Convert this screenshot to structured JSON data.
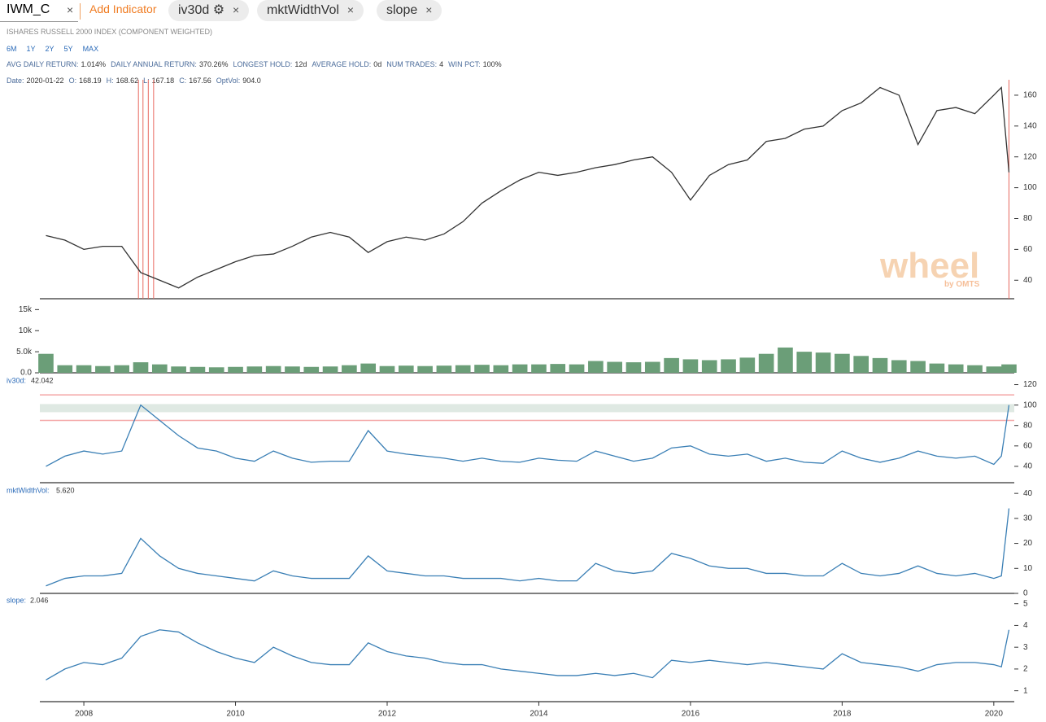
{
  "toolbar": {
    "symbol": "IWM_C",
    "close_icon": "×",
    "add_indicator": "Add Indicator",
    "tabs": [
      {
        "label": "iv30d",
        "icon": "⚙",
        "close": "×"
      },
      {
        "label": "mktWidthVol",
        "close": "×"
      },
      {
        "label": "slope",
        "close": "×"
      }
    ]
  },
  "subtitle": "ISHARES RUSSELL 2000 INDEX (COMPONENT WEIGHTED)",
  "ranges": [
    "6M",
    "1Y",
    "2Y",
    "5Y",
    "MAX"
  ],
  "stats": [
    {
      "label": "AVG DAILY RETURN:",
      "value": "1.014%"
    },
    {
      "label": "DAILY ANNUAL RETURN:",
      "value": "370.26%"
    },
    {
      "label": "LONGEST HOLD:",
      "value": "12d"
    },
    {
      "label": "AVERAGE HOLD:",
      "value": "0d"
    },
    {
      "label": "NUM TRADES:",
      "value": "4"
    },
    {
      "label": "WIN PCT:",
      "value": "100%"
    }
  ],
  "ohlc": [
    {
      "label": "Date:",
      "value": "2020-01-22"
    },
    {
      "label": "O:",
      "value": "168.19"
    },
    {
      "label": "H:",
      "value": "168.62"
    },
    {
      "label": "L:",
      "value": "167.18"
    },
    {
      "label": "C:",
      "value": "167.56"
    },
    {
      "label": "OptVol:",
      "value": "904.0"
    }
  ],
  "watermark": {
    "text": "wheel",
    "sub": "by OMTS"
  },
  "chart_data": [
    {
      "type": "line",
      "color": "#333333",
      "x": [
        2007.5,
        2007.75,
        2008,
        2008.25,
        2008.5,
        2008.75,
        2009,
        2009.25,
        2009.5,
        2009.75,
        2010,
        2010.25,
        2010.5,
        2010.75,
        2011,
        2011.25,
        2011.5,
        2011.75,
        2012,
        2012.25,
        2012.5,
        2012.75,
        2013,
        2013.25,
        2013.5,
        2013.75,
        2014,
        2014.25,
        2014.5,
        2014.75,
        2015,
        2015.25,
        2015.5,
        2015.75,
        2016,
        2016.25,
        2016.5,
        2016.75,
        2017,
        2017.25,
        2017.5,
        2017.75,
        2018,
        2018.25,
        2018.5,
        2018.75,
        2019,
        2019.25,
        2019.5,
        2019.75,
        2020,
        2020.1,
        2020.2
      ],
      "values": [
        69,
        66,
        60,
        62,
        62,
        45,
        40,
        35,
        42,
        47,
        52,
        56,
        57,
        62,
        68,
        71,
        68,
        58,
        65,
        68,
        66,
        70,
        78,
        90,
        98,
        105,
        110,
        108,
        110,
        113,
        115,
        118,
        120,
        110,
        92,
        108,
        115,
        118,
        130,
        132,
        138,
        140,
        150,
        155,
        165,
        160,
        128,
        150,
        152,
        148,
        160,
        165,
        110
      ],
      "trade_markers": {
        "x": [
          2008.72,
          2008.78,
          2008.85,
          2008.92,
          2020.2
        ],
        "color": "#e8685f"
      },
      "xlim": [
        2007.42,
        2020.27
      ],
      "ylim": [
        28,
        170
      ],
      "yticks": [
        40,
        60,
        80,
        100,
        120,
        140,
        160
      ]
    },
    {
      "type": "bar",
      "color": "#6b9e78",
      "x": [
        2007.5,
        2007.75,
        2008,
        2008.25,
        2008.5,
        2008.75,
        2009,
        2009.25,
        2009.5,
        2009.75,
        2010,
        2010.25,
        2010.5,
        2010.75,
        2011,
        2011.25,
        2011.5,
        2011.75,
        2012,
        2012.25,
        2012.5,
        2012.75,
        2013,
        2013.25,
        2013.5,
        2013.75,
        2014,
        2014.25,
        2014.5,
        2014.75,
        2015,
        2015.25,
        2015.5,
        2015.75,
        2016,
        2016.25,
        2016.5,
        2016.75,
        2017,
        2017.25,
        2017.5,
        2017.75,
        2018,
        2018.25,
        2018.5,
        2018.75,
        2019,
        2019.25,
        2019.5,
        2019.75,
        2020,
        2020.1,
        2020.2
      ],
      "values": [
        4500,
        1800,
        1800,
        1600,
        1800,
        2500,
        2000,
        1500,
        1400,
        1300,
        1400,
        1500,
        1600,
        1500,
        1400,
        1500,
        1800,
        2200,
        1600,
        1700,
        1600,
        1700,
        1800,
        1900,
        1800,
        2000,
        2000,
        2100,
        2000,
        2800,
        2600,
        2500,
        2600,
        3500,
        3200,
        3000,
        3200,
        3600,
        4500,
        6000,
        5000,
        4800,
        4500,
        4000,
        3500,
        3000,
        2800,
        2200,
        2000,
        1800,
        1500,
        1400,
        2000
      ],
      "xlim": [
        2007.42,
        2020.27
      ],
      "ylim": [
        0,
        17000
      ],
      "yticks": [
        {
          "value": 0,
          "label": "0.0"
        },
        {
          "value": 5000,
          "label": "5.0k"
        },
        {
          "value": 10000,
          "label": "10k"
        },
        {
          "value": 15000,
          "label": "15k"
        }
      ]
    },
    {
      "type": "line",
      "color": "#3a7fb5",
      "title": "iv30d:",
      "title_value": "42.042",
      "x": [
        2007.5,
        2007.75,
        2008,
        2008.25,
        2008.5,
        2008.75,
        2009,
        2009.25,
        2009.5,
        2009.75,
        2010,
        2010.25,
        2010.5,
        2010.75,
        2011,
        2011.25,
        2011.5,
        2011.75,
        2012,
        2012.25,
        2012.5,
        2012.75,
        2013,
        2013.25,
        2013.5,
        2013.75,
        2014,
        2014.25,
        2014.5,
        2014.75,
        2015,
        2015.25,
        2015.5,
        2015.75,
        2016,
        2016.25,
        2016.5,
        2016.75,
        2017,
        2017.25,
        2017.5,
        2017.75,
        2018,
        2018.25,
        2018.5,
        2018.75,
        2019,
        2019.25,
        2019.5,
        2019.75,
        2020,
        2020.1,
        2020.2
      ],
      "values": [
        40,
        50,
        55,
        52,
        55,
        100,
        85,
        70,
        58,
        55,
        48,
        45,
        55,
        48,
        44,
        45,
        45,
        75,
        55,
        52,
        50,
        48,
        45,
        48,
        45,
        44,
        48,
        46,
        45,
        55,
        50,
        45,
        48,
        58,
        60,
        52,
        50,
        52,
        45,
        48,
        44,
        43,
        55,
        48,
        44,
        48,
        55,
        50,
        48,
        50,
        42,
        50,
        100
      ],
      "band": {
        "from": 93,
        "to": 101,
        "color": "#dfe9e3"
      },
      "reference_lines": [
        {
          "value": 85,
          "color": "#f4a8a8"
        },
        {
          "value": 110,
          "color": "#f4a8a8"
        }
      ],
      "xlim": [
        2007.42,
        2020.27
      ],
      "ylim": [
        24,
        126
      ],
      "yticks": [
        40,
        60,
        80,
        100,
        120
      ]
    },
    {
      "type": "line",
      "color": "#3a7fb5",
      "title": "mktWidthVol:",
      "title_value": "5.620",
      "x": [
        2007.5,
        2007.75,
        2008,
        2008.25,
        2008.5,
        2008.75,
        2009,
        2009.25,
        2009.5,
        2009.75,
        2010,
        2010.25,
        2010.5,
        2010.75,
        2011,
        2011.25,
        2011.5,
        2011.75,
        2012,
        2012.25,
        2012.5,
        2012.75,
        2013,
        2013.25,
        2013.5,
        2013.75,
        2014,
        2014.25,
        2014.5,
        2014.75,
        2015,
        2015.25,
        2015.5,
        2015.75,
        2016,
        2016.25,
        2016.5,
        2016.75,
        2017,
        2017.25,
        2017.5,
        2017.75,
        2018,
        2018.25,
        2018.5,
        2018.75,
        2019,
        2019.25,
        2019.5,
        2019.75,
        2020,
        2020.1,
        2020.2
      ],
      "values": [
        3,
        6,
        7,
        7,
        8,
        22,
        15,
        10,
        8,
        7,
        6,
        5,
        9,
        7,
        6,
        6,
        6,
        15,
        9,
        8,
        7,
        7,
        6,
        6,
        6,
        5,
        6,
        5,
        5,
        12,
        9,
        8,
        9,
        16,
        14,
        11,
        10,
        10,
        8,
        8,
        7,
        7,
        12,
        8,
        7,
        8,
        11,
        8,
        7,
        8,
        6,
        7,
        34
      ],
      "xlim": [
        2007.42,
        2020.27
      ],
      "ylim": [
        0,
        42
      ],
      "yticks": [
        0,
        10,
        20,
        30,
        40
      ]
    },
    {
      "type": "line",
      "color": "#3a7fb5",
      "title": "slope:",
      "title_value": "2.046",
      "x": [
        2007.5,
        2007.75,
        2008,
        2008.25,
        2008.5,
        2008.75,
        2009,
        2009.25,
        2009.5,
        2009.75,
        2010,
        2010.25,
        2010.5,
        2010.75,
        2011,
        2011.25,
        2011.5,
        2011.75,
        2012,
        2012.25,
        2012.5,
        2012.75,
        2013,
        2013.25,
        2013.5,
        2013.75,
        2014,
        2014.25,
        2014.5,
        2014.75,
        2015,
        2015.25,
        2015.5,
        2015.75,
        2016,
        2016.25,
        2016.5,
        2016.75,
        2017,
        2017.25,
        2017.5,
        2017.75,
        2018,
        2018.25,
        2018.5,
        2018.75,
        2019,
        2019.25,
        2019.5,
        2019.75,
        2020,
        2020.1,
        2020.2
      ],
      "values": [
        1.5,
        2.0,
        2.3,
        2.2,
        2.5,
        3.5,
        3.8,
        3.7,
        3.2,
        2.8,
        2.5,
        2.3,
        3.0,
        2.6,
        2.3,
        2.2,
        2.2,
        3.2,
        2.8,
        2.6,
        2.5,
        2.3,
        2.2,
        2.2,
        2.0,
        1.9,
        1.8,
        1.7,
        1.7,
        1.8,
        1.7,
        1.8,
        1.6,
        2.4,
        2.3,
        2.4,
        2.3,
        2.2,
        2.3,
        2.2,
        2.1,
        2.0,
        2.7,
        2.3,
        2.2,
        2.1,
        1.9,
        2.2,
        2.3,
        2.3,
        2.2,
        2.1,
        3.8
      ],
      "xlim": [
        2007.42,
        2020.27
      ],
      "ylim": [
        0.5,
        5.25
      ],
      "yticks": [
        1,
        2,
        3,
        4,
        5
      ],
      "xticks": [
        2008,
        2010,
        2012,
        2014,
        2016,
        2018,
        2020
      ]
    }
  ]
}
